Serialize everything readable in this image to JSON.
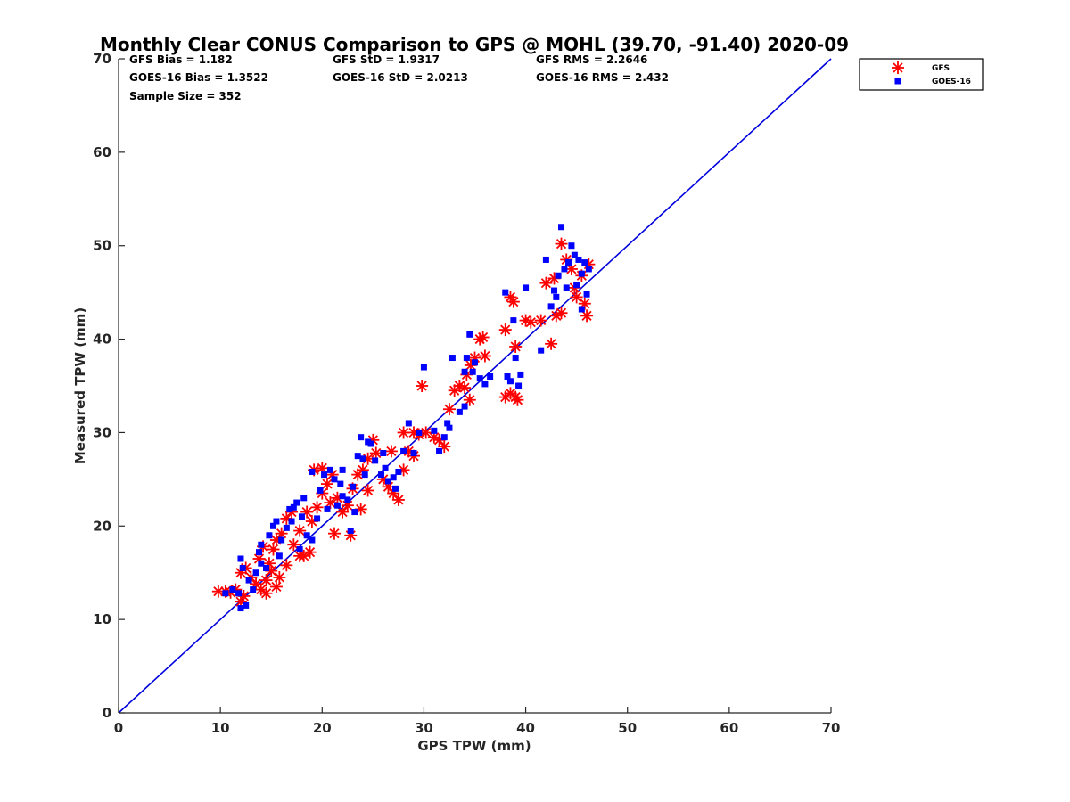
{
  "chart_data": {
    "type": "scatter",
    "title": "Monthly Clear CONUS Comparison to GPS @ MOHL (39.70, -91.40) 2020-09",
    "xlabel": "GPS TPW (mm)",
    "ylabel": "Measured TPW (mm)",
    "xlim": [
      0,
      70
    ],
    "ylim": [
      0,
      70
    ],
    "xticks": [
      "0",
      "10",
      "20",
      "30",
      "40",
      "50",
      "60",
      "70"
    ],
    "yticks": [
      "0",
      "10",
      "20",
      "30",
      "40",
      "50",
      "60",
      "70"
    ],
    "grid": false,
    "legend_position": "top-right, outside axes",
    "stats": {
      "gfs_bias": "GFS Bias = 1.182",
      "goes_bias": "GOES-16 Bias = 1.3522",
      "sample_size": "Sample Size = 352",
      "gfs_std": "GFS StD = 1.9317",
      "goes_std": "GOES-16 StD = 2.0213",
      "gfs_rms": "GFS RMS = 2.2646",
      "goes_rms": "GOES-16 RMS = 2.432"
    },
    "reference_line": {
      "x": [
        0,
        70
      ],
      "y": [
        0,
        70
      ],
      "color": "#0000dd"
    },
    "series": [
      {
        "name": "GFS",
        "marker": "asterisk",
        "color": "#ff0000",
        "points": [
          [
            9.8,
            13.0
          ],
          [
            10.5,
            13.0
          ],
          [
            11.0,
            12.9
          ],
          [
            11.5,
            13.2
          ],
          [
            12.0,
            11.9
          ],
          [
            12.3,
            12.5
          ],
          [
            12.0,
            15.0
          ],
          [
            12.5,
            15.5
          ],
          [
            13.0,
            14.5
          ],
          [
            13.5,
            13.8
          ],
          [
            14.0,
            13.2
          ],
          [
            14.5,
            14.2
          ],
          [
            14.8,
            16.0
          ],
          [
            15.2,
            17.5
          ],
          [
            15.5,
            18.5
          ],
          [
            16.0,
            19.2
          ],
          [
            16.5,
            20.8
          ],
          [
            17.0,
            21.5
          ],
          [
            13.8,
            16.5
          ],
          [
            14.2,
            17.8
          ],
          [
            15.0,
            15.2
          ],
          [
            15.8,
            14.5
          ],
          [
            16.5,
            15.8
          ],
          [
            17.2,
            18.0
          ],
          [
            17.8,
            19.5
          ],
          [
            18.2,
            16.8
          ],
          [
            18.8,
            17.2
          ],
          [
            19.0,
            20.5
          ],
          [
            19.5,
            22.0
          ],
          [
            20.0,
            23.5
          ],
          [
            19.2,
            26.0
          ],
          [
            20.0,
            26.2
          ],
          [
            20.5,
            24.5
          ],
          [
            21.0,
            25.5
          ],
          [
            21.5,
            23.0
          ],
          [
            22.0,
            21.5
          ],
          [
            22.5,
            22.2
          ],
          [
            21.2,
            19.2
          ],
          [
            22.8,
            19.0
          ],
          [
            23.0,
            24.0
          ],
          [
            23.5,
            25.5
          ],
          [
            24.0,
            26.0
          ],
          [
            24.5,
            27.2
          ],
          [
            25.0,
            29.2
          ],
          [
            25.3,
            27.8
          ],
          [
            26.0,
            25.0
          ],
          [
            26.5,
            24.2
          ],
          [
            27.0,
            23.5
          ],
          [
            27.5,
            22.8
          ],
          [
            28.0,
            26.0
          ],
          [
            26.8,
            28.0
          ],
          [
            28.5,
            28.0
          ],
          [
            29.0,
            30.0
          ],
          [
            29.5,
            29.8
          ],
          [
            28.0,
            30.0
          ],
          [
            29.0,
            27.5
          ],
          [
            30.2,
            30.0
          ],
          [
            31.0,
            29.5
          ],
          [
            31.5,
            29.2
          ],
          [
            32.0,
            28.5
          ],
          [
            32.5,
            32.5
          ],
          [
            33.0,
            34.5
          ],
          [
            33.5,
            35.0
          ],
          [
            34.0,
            34.8
          ],
          [
            34.5,
            33.5
          ],
          [
            35.0,
            38.0
          ],
          [
            35.5,
            40.0
          ],
          [
            35.8,
            40.2
          ],
          [
            36.0,
            38.2
          ],
          [
            34.6,
            37.2
          ],
          [
            34.2,
            36.2
          ],
          [
            29.8,
            35.0
          ],
          [
            38.0,
            41.0
          ],
          [
            38.5,
            44.5
          ],
          [
            38.8,
            44.0
          ],
          [
            39.0,
            39.2
          ],
          [
            38.0,
            33.8
          ],
          [
            38.5,
            34.2
          ],
          [
            39.0,
            33.8
          ],
          [
            39.2,
            33.5
          ],
          [
            40.0,
            42.0
          ],
          [
            40.5,
            41.8
          ],
          [
            41.5,
            42.0
          ],
          [
            42.5,
            39.5
          ],
          [
            42.0,
            46.0
          ],
          [
            42.8,
            46.5
          ],
          [
            43.0,
            42.5
          ],
          [
            43.5,
            42.8
          ],
          [
            43.5,
            50.2
          ],
          [
            44.0,
            48.5
          ],
          [
            44.5,
            47.5
          ],
          [
            45.0,
            44.5
          ],
          [
            45.5,
            46.8
          ],
          [
            45.8,
            43.8
          ],
          [
            46.0,
            42.5
          ],
          [
            46.2,
            48.0
          ],
          [
            44.8,
            45.5
          ],
          [
            14.5,
            12.8
          ],
          [
            15.5,
            13.5
          ],
          [
            17.8,
            16.8
          ],
          [
            18.5,
            21.5
          ],
          [
            20.8,
            22.5
          ],
          [
            23.8,
            21.8
          ],
          [
            24.5,
            23.8
          ]
        ]
      },
      {
        "name": "GOES-16",
        "marker": "square",
        "color": "#0000ff",
        "points": [
          [
            10.5,
            12.8
          ],
          [
            11.2,
            13.2
          ],
          [
            11.8,
            12.8
          ],
          [
            12.0,
            11.2
          ],
          [
            12.5,
            11.5
          ],
          [
            12.2,
            15.5
          ],
          [
            12.0,
            16.5
          ],
          [
            12.8,
            14.2
          ],
          [
            13.2,
            13.2
          ],
          [
            13.5,
            15.0
          ],
          [
            14.0,
            16.0
          ],
          [
            14.5,
            15.5
          ],
          [
            14.0,
            18.0
          ],
          [
            14.8,
            19.0
          ],
          [
            15.2,
            20.0
          ],
          [
            15.5,
            20.5
          ],
          [
            16.0,
            18.5
          ],
          [
            16.5,
            19.8
          ],
          [
            17.0,
            20.5
          ],
          [
            17.2,
            22.0
          ],
          [
            17.5,
            22.5
          ],
          [
            18.0,
            21.0
          ],
          [
            18.5,
            19.0
          ],
          [
            19.0,
            18.5
          ],
          [
            19.5,
            20.8
          ],
          [
            19.0,
            25.8
          ],
          [
            20.2,
            25.5
          ],
          [
            20.8,
            26.0
          ],
          [
            21.2,
            25.0
          ],
          [
            21.8,
            24.5
          ],
          [
            22.0,
            23.2
          ],
          [
            22.5,
            22.8
          ],
          [
            22.8,
            19.5
          ],
          [
            23.2,
            21.5
          ],
          [
            23.5,
            27.5
          ],
          [
            23.8,
            29.5
          ],
          [
            24.2,
            25.5
          ],
          [
            24.5,
            29.0
          ],
          [
            24.8,
            28.8
          ],
          [
            25.2,
            27.0
          ],
          [
            25.8,
            25.5
          ],
          [
            26.2,
            26.2
          ],
          [
            26.5,
            24.8
          ],
          [
            27.0,
            25.2
          ],
          [
            27.5,
            25.8
          ],
          [
            28.0,
            28.0
          ],
          [
            28.5,
            31.0
          ],
          [
            29.0,
            27.8
          ],
          [
            29.5,
            30.0
          ],
          [
            30.0,
            37.0
          ],
          [
            31.0,
            30.2
          ],
          [
            31.5,
            28.0
          ],
          [
            32.0,
            29.5
          ],
          [
            32.3,
            31.0
          ],
          [
            32.5,
            30.5
          ],
          [
            32.8,
            38.0
          ],
          [
            33.5,
            32.2
          ],
          [
            34.0,
            32.8
          ],
          [
            34.2,
            38.0
          ],
          [
            34.5,
            40.5
          ],
          [
            34.8,
            36.5
          ],
          [
            35.0,
            37.5
          ],
          [
            35.5,
            35.8
          ],
          [
            36.0,
            35.2
          ],
          [
            36.5,
            36.0
          ],
          [
            34.0,
            36.5
          ],
          [
            38.0,
            45.0
          ],
          [
            38.2,
            36.0
          ],
          [
            38.5,
            35.5
          ],
          [
            38.8,
            42.0
          ],
          [
            39.0,
            38.0
          ],
          [
            39.5,
            36.2
          ],
          [
            39.3,
            35.0
          ],
          [
            40.0,
            45.5
          ],
          [
            41.5,
            38.8
          ],
          [
            42.0,
            48.5
          ],
          [
            42.5,
            43.5
          ],
          [
            42.8,
            45.2
          ],
          [
            43.2,
            46.8
          ],
          [
            43.5,
            52.0
          ],
          [
            43.8,
            47.5
          ],
          [
            44.2,
            48.2
          ],
          [
            44.5,
            50.0
          ],
          [
            44.8,
            49.0
          ],
          [
            45.0,
            45.8
          ],
          [
            45.2,
            48.5
          ],
          [
            45.5,
            47.0
          ],
          [
            45.8,
            48.2
          ],
          [
            46.0,
            44.8
          ],
          [
            46.2,
            47.5
          ],
          [
            45.5,
            43.2
          ],
          [
            44.0,
            45.5
          ],
          [
            43.0,
            44.5
          ],
          [
            13.8,
            17.2
          ],
          [
            15.8,
            16.8
          ],
          [
            16.8,
            21.8
          ],
          [
            18.2,
            23.0
          ],
          [
            20.5,
            21.8
          ],
          [
            21.5,
            22.2
          ],
          [
            22.0,
            26.0
          ],
          [
            23.0,
            24.2
          ],
          [
            24.0,
            27.2
          ],
          [
            26.0,
            27.8
          ],
          [
            27.2,
            24.0
          ],
          [
            17.8,
            17.5
          ],
          [
            19.8,
            23.8
          ]
        ]
      }
    ]
  }
}
